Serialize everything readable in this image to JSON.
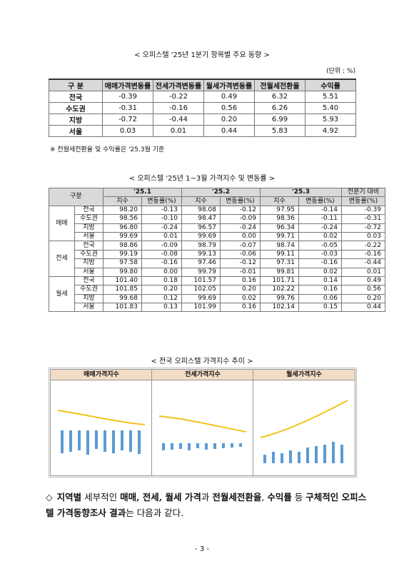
{
  "section1": {
    "title": "< 오피스텔 '25년 1분기 항목별 주요 동향 >",
    "unit": "(단위 : %)",
    "table": {
      "header": [
        "구 분",
        "매매가격변동률",
        "전세가격변동률",
        "월세가격변동률",
        "전월세전환율",
        "수익률"
      ],
      "rows": [
        [
          "전국",
          "-0.39",
          "-0.22",
          "0.49",
          "6.32",
          "5.51"
        ],
        [
          "수도권",
          "-0.31",
          "-0.16",
          "0.56",
          "6.26",
          "5.40"
        ],
        [
          "지방",
          "-0.72",
          "-0.44",
          "0.20",
          "6.99",
          "5.93"
        ],
        [
          "서울",
          "0.03",
          "0.01",
          "0.44",
          "5.83",
          "4.92"
        ]
      ]
    },
    "note": "※ 전월세전환율 및 수익률은 '25.3월 기준"
  },
  "section2": {
    "title": "< 오피스텔 '25년 1~3월 가격지수 및 변동률 >",
    "table": {
      "group_header": "구분",
      "periods": [
        "'25.1",
        "'25.2",
        "'25.3"
      ],
      "change_header": [
        "전분기 대비",
        "변동률(%)"
      ],
      "sub_header": [
        "지수",
        "변동률(%)",
        "지수",
        "변동률(%)",
        "지수",
        "변동률(%)"
      ],
      "groups": [
        {
          "name": "매매",
          "rows": [
            [
              "전국",
              "98.20",
              "-0.13",
              "98.08",
              "-0.12",
              "97.95",
              "-0.14",
              "-0.39"
            ],
            [
              "수도권",
              "98.56",
              "-0.10",
              "98.47",
              "-0.09",
              "98.36",
              "-0.11",
              "-0.31"
            ],
            [
              "지방",
              "96.80",
              "-0.24",
              "96.57",
              "-0.24",
              "96.34",
              "-0.24",
              "-0.72"
            ],
            [
              "서울",
              "99.69",
              "0.01",
              "99.69",
              "0.00",
              "99.71",
              "0.02",
              "0.03"
            ]
          ]
        },
        {
          "name": "전세",
          "rows": [
            [
              "전국",
              "98.86",
              "-0.09",
              "98.79",
              "-0.07",
              "98.74",
              "-0.05",
              "-0.22"
            ],
            [
              "수도권",
              "99.19",
              "-0.08",
              "99.13",
              "-0.06",
              "99.11",
              "-0.03",
              "-0.16"
            ],
            [
              "지방",
              "97.58",
              "-0.16",
              "97.46",
              "-0.12",
              "97.31",
              "-0.16",
              "-0.44"
            ],
            [
              "서울",
              "99.80",
              "0.00",
              "99.79",
              "-0.01",
              "99.81",
              "0.02",
              "0.01"
            ]
          ]
        },
        {
          "name": "월세",
          "rows": [
            [
              "전국",
              "101.40",
              "0.18",
              "101.57",
              "0.16",
              "101.71",
              "0.14",
              "0.49"
            ],
            [
              "수도권",
              "101.85",
              "0.20",
              "102.05",
              "0.20",
              "102.22",
              "0.16",
              "0.56"
            ],
            [
              "지방",
              "99.68",
              "0.12",
              "99.69",
              "0.02",
              "99.76",
              "0.06",
              "0.20"
            ],
            [
              "서울",
              "101.83",
              "0.13",
              "101.99",
              "0.16",
              "102.14",
              "0.15",
              "0.44"
            ]
          ]
        }
      ]
    }
  },
  "section3": {
    "title": "< 전국 오피스텔 가격지수 추이 >",
    "charts": [
      "매매가격지수",
      "전세가격지수",
      "월세가격지수"
    ]
  },
  "summary": {
    "bullet": "◇",
    "segments": [
      {
        "text": "지역별",
        "bold": true
      },
      {
        "text": " 세부적인 ",
        "bold": false
      },
      {
        "text": "매매, 전세, 월세 가격",
        "bold": true
      },
      {
        "text": "과 ",
        "bold": false
      },
      {
        "text": "전월세전환율",
        "bold": true
      },
      {
        "text": ", ",
        "bold": false
      },
      {
        "text": "수익률",
        "bold": true
      },
      {
        "text": " 등 ",
        "bold": false
      },
      {
        "text": "구체적인 오피스텔 가격동향조사 결과",
        "bold": true
      },
      {
        "text": "는 다음과 같다.",
        "bold": false
      }
    ]
  },
  "page_number": "- 3 -"
}
